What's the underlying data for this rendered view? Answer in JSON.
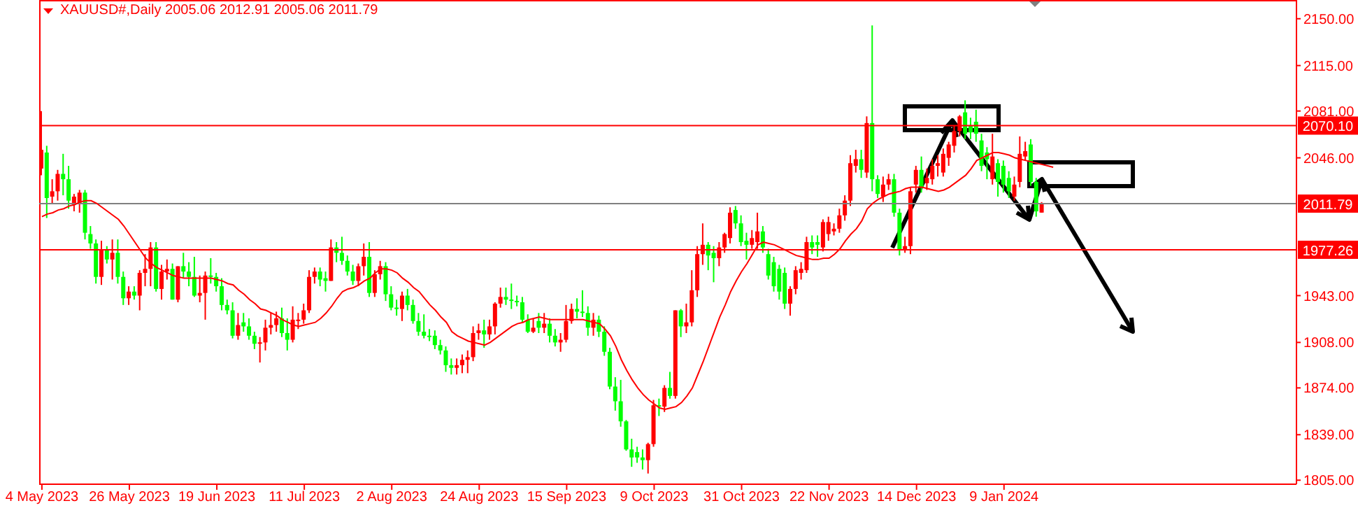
{
  "chart_data": {
    "type": "candlestick",
    "title": "XAUUSD#,Daily 2005.06 2012.91 2005.06 2011.79",
    "categories": [
      "4 May 2023",
      null,
      null,
      null,
      null,
      null,
      null,
      null,
      null,
      null,
      null,
      null,
      null,
      null,
      null,
      null,
      "26 May 2023",
      null,
      null,
      null,
      null,
      null,
      null,
      null,
      null,
      null,
      null,
      null,
      null,
      null,
      null,
      null,
      "19 Jun 2023",
      null,
      null,
      null,
      null,
      null,
      null,
      null,
      null,
      null,
      null,
      null,
      null,
      null,
      null,
      null,
      "11 Jul 2023",
      null,
      null,
      null,
      null,
      null,
      null,
      null,
      null,
      null,
      null,
      null,
      null,
      null,
      null,
      null,
      "2 Aug 2023",
      null,
      null,
      null,
      null,
      null,
      null,
      null,
      null,
      null,
      null,
      null,
      null,
      null,
      null,
      null,
      "24 Aug 2023",
      null,
      null,
      null,
      null,
      null,
      null,
      null,
      null,
      null,
      null,
      null,
      null,
      null,
      null,
      null,
      "15 Sep 2023",
      null,
      null,
      null,
      null,
      null,
      null,
      null,
      null,
      null,
      null,
      null,
      null,
      null,
      null,
      null,
      "9 Oct 2023",
      null,
      null,
      null,
      null,
      null,
      null,
      null,
      null,
      null,
      null,
      null,
      null,
      null,
      null,
      null,
      "31 Oct 2023",
      null,
      null,
      null,
      null,
      null,
      null,
      null,
      null,
      null,
      null,
      null,
      null,
      null,
      null,
      null,
      "22 Nov 2023",
      null,
      null,
      null,
      null,
      null,
      null,
      null,
      null,
      null,
      null,
      null,
      null,
      null,
      null,
      null,
      "14 Dec 2023",
      null,
      null,
      null,
      null,
      null,
      null,
      null,
      null,
      null,
      null,
      null,
      null,
      null,
      null,
      null,
      "9 Jan 2024",
      null,
      null,
      null,
      null,
      null,
      null,
      null,
      null,
      null,
      null,
      null,
      null,
      null,
      null,
      null,
      null,
      null,
      null,
      null,
      null,
      null,
      null,
      null,
      null,
      null,
      null,
      null,
      null,
      null,
      null,
      null,
      null,
      null,
      null,
      null,
      null,
      null,
      null,
      null,
      null,
      null,
      null,
      null,
      null,
      null,
      null,
      null,
      null,
      null,
      null,
      null,
      null,
      null
    ],
    "series": [
      {
        "type": "candlestick",
        "ohlc": [
          [
            2038,
            2081,
            2033,
            2052
          ],
          [
            2050,
            2055,
            2001,
            2016
          ],
          [
            2017,
            2030,
            2012,
            2021
          ],
          [
            2021,
            2037,
            2014,
            2034
          ],
          [
            2034,
            2049,
            2018,
            2030
          ],
          [
            2030,
            2040,
            2008,
            2014
          ],
          [
            2011,
            2019,
            2006,
            2017
          ],
          [
            2012,
            2022,
            2005,
            2020
          ],
          [
            2020,
            2022,
            1985,
            1990
          ],
          [
            1989,
            1995,
            1978,
            1982
          ],
          [
            1982,
            1985,
            1952,
            1957
          ],
          [
            1957,
            1984,
            1951,
            1977
          ],
          [
            1977,
            1980,
            1967,
            1970
          ],
          [
            1970,
            1985,
            1955,
            1975
          ],
          [
            1975,
            1985,
            1952,
            1957
          ],
          [
            1957,
            1961,
            1936,
            1941
          ],
          [
            1941,
            1950,
            1936,
            1946
          ],
          [
            1946,
            1950,
            1940,
            1943
          ],
          [
            1943,
            1962,
            1932,
            1960
          ],
          [
            1960,
            1974,
            1950,
            1963
          ],
          [
            1963,
            1983,
            1950,
            1979
          ],
          [
            1979,
            1983,
            1946,
            1948
          ],
          [
            1948,
            1966,
            1940,
            1961
          ],
          [
            1961,
            1970,
            1955,
            1963
          ],
          [
            1963,
            1967,
            1940,
            1940
          ],
          [
            1940,
            1965,
            1938,
            1965
          ],
          [
            1965,
            1975,
            1956,
            1961
          ],
          [
            1961,
            1968,
            1950,
            1957
          ],
          [
            1957,
            1972,
            1942,
            1943
          ],
          [
            1943,
            1958,
            1938,
            1945
          ],
          [
            1945,
            1961,
            1925,
            1958
          ],
          [
            1958,
            1971,
            1952,
            1957
          ],
          [
            1957,
            1960,
            1946,
            1950
          ],
          [
            1950,
            1956,
            1932,
            1936
          ],
          [
            1936,
            1940,
            1929,
            1932
          ],
          [
            1932,
            1938,
            1911,
            1913
          ],
          [
            1913,
            1930,
            1910,
            1921
          ],
          [
            1923,
            1930,
            1916,
            1920
          ],
          [
            1920,
            1926,
            1910,
            1913
          ],
          [
            1913,
            1916,
            1903,
            1907
          ],
          [
            1907,
            1912,
            1893,
            1908
          ],
          [
            1908,
            1925,
            1902,
            1919
          ],
          [
            1919,
            1930,
            1914,
            1921
          ],
          [
            1921,
            1931,
            1916,
            1926
          ],
          [
            1926,
            1934,
            1912,
            1915
          ],
          [
            1915,
            1926,
            1902,
            1910
          ],
          [
            1910,
            1935,
            1908,
            1925
          ],
          [
            1924,
            1930,
            1918,
            1925
          ],
          [
            1925,
            1937,
            1922,
            1932
          ],
          [
            1932,
            1962,
            1930,
            1957
          ],
          [
            1957,
            1964,
            1952,
            1961
          ],
          [
            1961,
            1964,
            1950,
            1955
          ],
          [
            1956,
            1961,
            1946,
            1954
          ],
          [
            1954,
            1985,
            1954,
            1979
          ],
          [
            1979,
            1983,
            1968,
            1975
          ],
          [
            1975,
            1987,
            1966,
            1969
          ],
          [
            1969,
            1973,
            1958,
            1961
          ],
          [
            1961,
            1966,
            1951,
            1954
          ],
          [
            1954,
            1967,
            1950,
            1965
          ],
          [
            1965,
            1982,
            1958,
            1972
          ],
          [
            1972,
            1983,
            1942,
            1945
          ],
          [
            1945,
            1962,
            1942,
            1959
          ],
          [
            1959,
            1969,
            1955,
            1965
          ],
          [
            1965,
            1968,
            1939,
            1944
          ],
          [
            1944,
            1950,
            1932,
            1934
          ],
          [
            1934,
            1940,
            1928,
            1933
          ],
          [
            1933,
            1946,
            1924,
            1943
          ],
          [
            1943,
            1948,
            1932,
            1936
          ],
          [
            1936,
            1940,
            1922,
            1924
          ],
          [
            1924,
            1930,
            1913,
            1916
          ],
          [
            1916,
            1929,
            1911,
            1913
          ],
          [
            1913,
            1918,
            1909,
            1912
          ],
          [
            1913,
            1917,
            1903,
            1906
          ],
          [
            1906,
            1910,
            1899,
            1902
          ],
          [
            1902,
            1905,
            1886,
            1891
          ],
          [
            1891,
            1896,
            1884,
            1889
          ],
          [
            1889,
            1896,
            1884,
            1891
          ],
          [
            1891,
            1899,
            1885,
            1895
          ],
          [
            1895,
            1902,
            1885,
            1897
          ],
          [
            1897,
            1920,
            1894,
            1915
          ],
          [
            1915,
            1922,
            1910,
            1917
          ],
          [
            1917,
            1925,
            1904,
            1914
          ],
          [
            1914,
            1925,
            1910,
            1920
          ],
          [
            1920,
            1938,
            1914,
            1937
          ],
          [
            1937,
            1949,
            1934,
            1942
          ],
          [
            1942,
            1949,
            1936,
            1940
          ],
          [
            1940,
            1952,
            1933,
            1939
          ],
          [
            1939,
            1943,
            1935,
            1938
          ],
          [
            1938,
            1942,
            1923,
            1925
          ],
          [
            1925,
            1929,
            1915,
            1916
          ],
          [
            1916,
            1926,
            1915,
            1919
          ],
          [
            1924,
            1930,
            1915,
            1919
          ],
          [
            1919,
            1930,
            1915,
            1922
          ],
          [
            1922,
            1926,
            1908,
            1913
          ],
          [
            1913,
            1918,
            1905,
            1908
          ],
          [
            1908,
            1915,
            1901,
            1910
          ],
          [
            1910,
            1936,
            1908,
            1924
          ],
          [
            1924,
            1937,
            1922,
            1933
          ],
          [
            1933,
            1941,
            1926,
            1931
          ],
          [
            1931,
            1947,
            1927,
            1930
          ],
          [
            1930,
            1935,
            1913,
            1919
          ],
          [
            1919,
            1930,
            1913,
            1925
          ],
          [
            1925,
            1928,
            1912,
            1916
          ],
          [
            1916,
            1920,
            1898,
            1901
          ],
          [
            1901,
            1904,
            1873,
            1875
          ],
          [
            1875,
            1882,
            1857,
            1864
          ],
          [
            1864,
            1880,
            1845,
            1849
          ],
          [
            1849,
            1850,
            1827,
            1828
          ],
          [
            1828,
            1836,
            1815,
            1822
          ],
          [
            1826,
            1830,
            1818,
            1822
          ],
          [
            1822,
            1828,
            1813,
            1820
          ],
          [
            1820,
            1833,
            1810,
            1832
          ],
          [
            1832,
            1865,
            1830,
            1861
          ],
          [
            1861,
            1866,
            1853,
            1860
          ],
          [
            1860,
            1876,
            1856,
            1874
          ],
          [
            1874,
            1886,
            1866,
            1868
          ],
          [
            1868,
            1932,
            1866,
            1932
          ],
          [
            1932,
            1933,
            1912,
            1920
          ],
          [
            1920,
            1937,
            1915,
            1923
          ],
          [
            1923,
            1962,
            1920,
            1947
          ],
          [
            1947,
            1980,
            1942,
            1974
          ],
          [
            1974,
            1997,
            1966,
            1981
          ],
          [
            1981,
            1983,
            1962,
            1973
          ],
          [
            1975,
            1980,
            1953,
            1971
          ],
          [
            1971,
            1983,
            1965,
            1979
          ],
          [
            1979,
            1990,
            1975,
            1989
          ],
          [
            1986,
            2009,
            1982,
            2005
          ],
          [
            2007,
            2010,
            1993,
            1997
          ],
          [
            1997,
            2003,
            1980,
            1983
          ],
          [
            1984,
            1990,
            1970,
            1981
          ],
          [
            1981,
            1992,
            1978,
            1986
          ],
          [
            1983,
            2005,
            1978,
            1991
          ],
          [
            1991,
            1995,
            1975,
            1979
          ],
          [
            1974,
            1978,
            1955,
            1958
          ],
          [
            1968,
            1972,
            1946,
            1950
          ],
          [
            1963,
            1966,
            1940,
            1946
          ],
          [
            1960,
            1964,
            1933,
            1937
          ],
          [
            1937,
            1950,
            1928,
            1948
          ],
          [
            1948,
            1965,
            1944,
            1962
          ],
          [
            1960,
            1968,
            1955,
            1963
          ],
          [
            1962,
            1987,
            1960,
            1983
          ],
          [
            1983,
            1988,
            1974,
            1979
          ],
          [
            1983,
            1988,
            1972,
            1981
          ],
          [
            1979,
            2000,
            1976,
            1998
          ],
          [
            1989,
            2002,
            1984,
            1998
          ],
          [
            1991,
            1997,
            1988,
            1993
          ],
          [
            1993,
            2008,
            1990,
            2003
          ],
          [
            2003,
            2018,
            1999,
            2014
          ],
          [
            2014,
            2048,
            2010,
            2042
          ],
          [
            2040,
            2052,
            2035,
            2045
          ],
          [
            2045,
            2052,
            2031,
            2037
          ],
          [
            2035,
            2077,
            2031,
            2072
          ],
          [
            2072,
            2145,
            2021,
            2030
          ],
          [
            2030,
            2033,
            2016,
            2019
          ],
          [
            2017,
            2032,
            2013,
            2026
          ],
          [
            2026,
            2034,
            2022,
            2030
          ],
          [
            2030,
            2034,
            2002,
            2005
          ],
          [
            2005,
            2008,
            1973,
            1977
          ],
          [
            1977,
            1987,
            1975,
            1980
          ],
          [
            1980,
            2024,
            1974,
            2021
          ],
          [
            2026,
            2040,
            2020,
            2037
          ],
          [
            2037,
            2047,
            2020,
            2024
          ],
          [
            2027,
            2038,
            2022,
            2031
          ],
          [
            2030,
            2045,
            2026,
            2040
          ],
          [
            2040,
            2048,
            2032,
            2042
          ],
          [
            2035,
            2053,
            2032,
            2049
          ],
          [
            2046,
            2058,
            2040,
            2056
          ],
          [
            2055,
            2070,
            2050,
            2066
          ],
          [
            2066,
            2078,
            2062,
            2077
          ],
          [
            2080,
            2089,
            2060,
            2064
          ],
          [
            2070,
            2076,
            2060,
            2065
          ],
          [
            2073,
            2082,
            2058,
            2064
          ],
          [
            2059,
            2064,
            2036,
            2040
          ],
          [
            2050,
            2054,
            2030,
            2045
          ],
          [
            2030,
            2064,
            2026,
            2047
          ],
          [
            2042,
            2045,
            2017,
            2028
          ],
          [
            2040,
            2044,
            2020,
            2026
          ],
          [
            2031,
            2036,
            2016,
            2021
          ],
          [
            2017,
            2032,
            2014,
            2026
          ],
          [
            2028,
            2062,
            2024,
            2049
          ],
          [
            2047,
            2058,
            2044,
            2051
          ],
          [
            2056,
            2060,
            2025,
            2028
          ],
          [
            2028,
            2031,
            2002,
            2006
          ],
          [
            2005.06,
            2012.91,
            2005.06,
            2011.79
          ],
          null,
          null,
          null,
          null,
          null,
          null,
          null,
          null,
          null,
          null,
          null,
          null,
          null,
          null,
          null,
          null,
          null,
          null,
          null,
          null,
          null,
          null,
          null,
          null,
          null,
          null,
          null,
          null,
          null,
          null,
          null,
          null,
          null,
          null,
          null,
          null,
          null,
          null,
          null,
          null,
          null,
          null,
          null,
          null,
          null,
          null
        ],
        "colors": [
          "#ff0000",
          "#00ff00",
          "#ff0000",
          "#ff0000",
          "#00ff00",
          "#00ff00",
          "#ff0000",
          "#ff0000",
          "#00ff00",
          "#00ff00",
          "#00ff00",
          "#ff0000",
          "#00ff00",
          "#ff0000",
          "#00ff00",
          "#00ff00",
          "#ff0000",
          "#00ff00",
          "#ff0000",
          "#ff0000",
          "#ff0000",
          "#00ff00",
          "#ff0000",
          "#ff0000",
          "#00ff00",
          "#ff0000",
          "#00ff00",
          "#00ff00",
          "#00ff00",
          "#ff0000",
          "#ff0000",
          "#00ff00",
          "#00ff00",
          "#00ff00",
          "#00ff00",
          "#00ff00",
          "#ff0000",
          "#00ff00",
          "#00ff00",
          "#00ff00",
          "#ff0000",
          "#ff0000",
          "#ff0000",
          "#ff0000",
          "#00ff00",
          "#00ff00",
          "#ff0000",
          "#ff0000",
          "#ff0000",
          "#ff0000",
          "#ff0000",
          "#00ff00",
          "#00ff00",
          "#ff0000",
          "#00ff00",
          "#00ff00",
          "#00ff00",
          "#00ff00",
          "#ff0000",
          "#ff0000",
          "#00ff00",
          "#ff0000",
          "#ff0000",
          "#00ff00",
          "#00ff00",
          "#00ff00",
          "#ff0000",
          "#00ff00",
          "#00ff00",
          "#00ff00",
          "#00ff00",
          "#00ff00",
          "#00ff00",
          "#00ff00",
          "#00ff00",
          "#00ff00",
          "#ff0000",
          "#ff0000",
          "#ff0000",
          "#ff0000",
          "#ff0000",
          "#00ff00",
          "#ff0000",
          "#ff0000",
          "#ff0000",
          "#00ff00",
          "#00ff00",
          "#00ff00",
          "#00ff00",
          "#00ff00",
          "#ff0000",
          "#00ff00",
          "#ff0000",
          "#00ff00",
          "#00ff00",
          "#ff0000",
          "#ff0000",
          "#ff0000",
          "#00ff00",
          "#00ff00",
          "#00ff00",
          "#ff0000",
          "#00ff00",
          "#00ff00",
          "#00ff00",
          "#00ff00",
          "#00ff00",
          "#00ff00",
          "#00ff00",
          "#00ff00",
          "#00ff00",
          "#ff0000",
          "#ff0000",
          "#00ff00",
          "#ff0000",
          "#00ff00",
          "#ff0000",
          "#00ff00",
          "#ff0000",
          "#ff0000",
          "#ff0000",
          "#ff0000",
          "#00ff00",
          "#00ff00",
          "#ff0000",
          "#ff0000",
          "#ff0000",
          "#00ff00",
          "#00ff00",
          "#00ff00",
          "#ff0000",
          "#ff0000",
          "#00ff00",
          "#00ff00",
          "#00ff00",
          "#00ff00",
          "#00ff00",
          "#ff0000",
          "#ff0000",
          "#ff0000",
          "#ff0000",
          "#00ff00",
          "#00ff00",
          "#ff0000",
          "#ff0000",
          "#ff0000",
          "#ff0000",
          "#ff0000",
          "#ff0000",
          "#ff0000",
          "#00ff00",
          "#ff0000",
          "#00ff00",
          "#00ff00",
          "#ff0000",
          "#ff0000",
          "#00ff00",
          "#00ff00",
          "#ff0000",
          "#ff0000",
          "#ff0000",
          "#00ff00",
          "#ff0000",
          "#ff0000",
          "#ff0000",
          "#ff0000",
          "#ff0000",
          "#ff0000",
          "#ff0000",
          "#00ff00",
          "#00ff00",
          "#00ff00",
          "#00ff00",
          "#00ff00",
          "#ff0000",
          "#00ff00",
          "#00ff00",
          "#00ff00",
          "#ff0000",
          "#ff0000",
          "#ff0000",
          "#00ff00",
          "#00ff00",
          "#ff0000",
          null,
          null,
          null,
          null,
          null,
          null,
          null,
          null,
          null,
          null,
          null,
          null,
          null,
          null,
          null,
          null,
          null,
          null,
          null,
          null,
          null,
          null,
          null,
          null,
          null,
          null,
          null,
          null,
          null,
          null,
          null,
          null,
          null,
          null,
          null,
          null,
          null,
          null,
          null,
          null,
          null,
          null,
          null,
          null,
          null,
          null
        ]
      },
      {
        "type": "line",
        "color": "#ff0000",
        "values": [
          2002,
          2004,
          2005,
          2007,
          2008,
          2010,
          2011,
          2013,
          2014,
          2014,
          2012,
          2009,
          2006,
          2003,
          2000,
          1995,
          1989,
          1983,
          1977,
          1971,
          1967,
          1964,
          1962,
          1960,
          1958,
          1957,
          1956,
          1956,
          1956,
          1956,
          1956,
          1956,
          1955,
          1954,
          1952,
          1951,
          1947,
          1944,
          1940,
          1937,
          1933,
          1932,
          1930,
          1928,
          1925,
          1923,
          1921,
          1920,
          1921,
          1922,
          1923,
          1926,
          1930,
          1935,
          1941,
          1946,
          1948,
          1949,
          1951,
          1954,
          1956,
          1960,
          1963,
          1963,
          1962,
          1960,
          1956,
          1953,
          1949,
          1946,
          1941,
          1936,
          1932,
          1927,
          1923,
          1916,
          1913,
          1911,
          1909,
          1908,
          1907,
          1906,
          1908,
          1911,
          1914,
          1917,
          1920,
          1922,
          1923,
          1925,
          1926,
          1927,
          1926,
          1925,
          1925,
          1925,
          1925,
          1925,
          1925,
          1925,
          1924,
          1923,
          1922,
          1918,
          1913,
          1905,
          1895,
          1887,
          1880,
          1874,
          1869,
          1865,
          1862,
          1859,
          1858,
          1859,
          1860,
          1863,
          1868,
          1874,
          1884,
          1894,
          1905,
          1916,
          1927,
          1936,
          1946,
          1954,
          1961,
          1967,
          1974,
          1981,
          1983,
          1982,
          1981,
          1979,
          1977,
          1975,
          1973,
          1972,
          1971,
          1970,
          1970,
          1971,
          1971,
          1974,
          1978,
          1984,
          1989,
          1993,
          1999,
          2008,
          2012,
          2015,
          2017,
          2019,
          2020,
          2021,
          2023,
          2024,
          2024,
          2024,
          2023,
          2022,
          2021,
          2022,
          2024,
          2027,
          2030,
          2033,
          2038,
          2044,
          2046,
          2048,
          2050,
          2050,
          2049,
          2048,
          2046,
          2045,
          2044,
          2043,
          2042,
          2041,
          2040,
          2039,
          null,
          null,
          null,
          null,
          null,
          null,
          null,
          null,
          null,
          null,
          null,
          null,
          null,
          null,
          null,
          null,
          null,
          null,
          null,
          null,
          null,
          null,
          null,
          null,
          null,
          null,
          null,
          null,
          null,
          null,
          null,
          null,
          null,
          null,
          null,
          null,
          null,
          null,
          null,
          null,
          null,
          null,
          null,
          null
        ]
      }
    ],
    "ylim": [
      1802,
      2164
    ],
    "yticks": [
      {
        "value": 2150,
        "label": "2150.00"
      },
      {
        "value": 2115,
        "label": "2115.00"
      },
      {
        "value": 2081,
        "label": "2081.00"
      },
      {
        "value": 2046,
        "label": "2046.00"
      },
      {
        "value": 1943,
        "label": "1943.00"
      },
      {
        "value": 1908,
        "label": "1908.00"
      },
      {
        "value": 1874,
        "label": "1874.00"
      },
      {
        "value": 1839,
        "label": "1839.00"
      },
      {
        "value": 1805,
        "label": "1805.00"
      }
    ],
    "ref_lines": [
      {
        "axis": "y",
        "value": 2070.1,
        "label": "2070.10",
        "color": "#ff0000"
      },
      {
        "axis": "y",
        "value": 2011.79,
        "label": "2011.79",
        "color": "#808080"
      },
      {
        "axis": "y",
        "value": 1977.26,
        "label": "1977.26",
        "color": "#ff0000"
      }
    ]
  }
}
